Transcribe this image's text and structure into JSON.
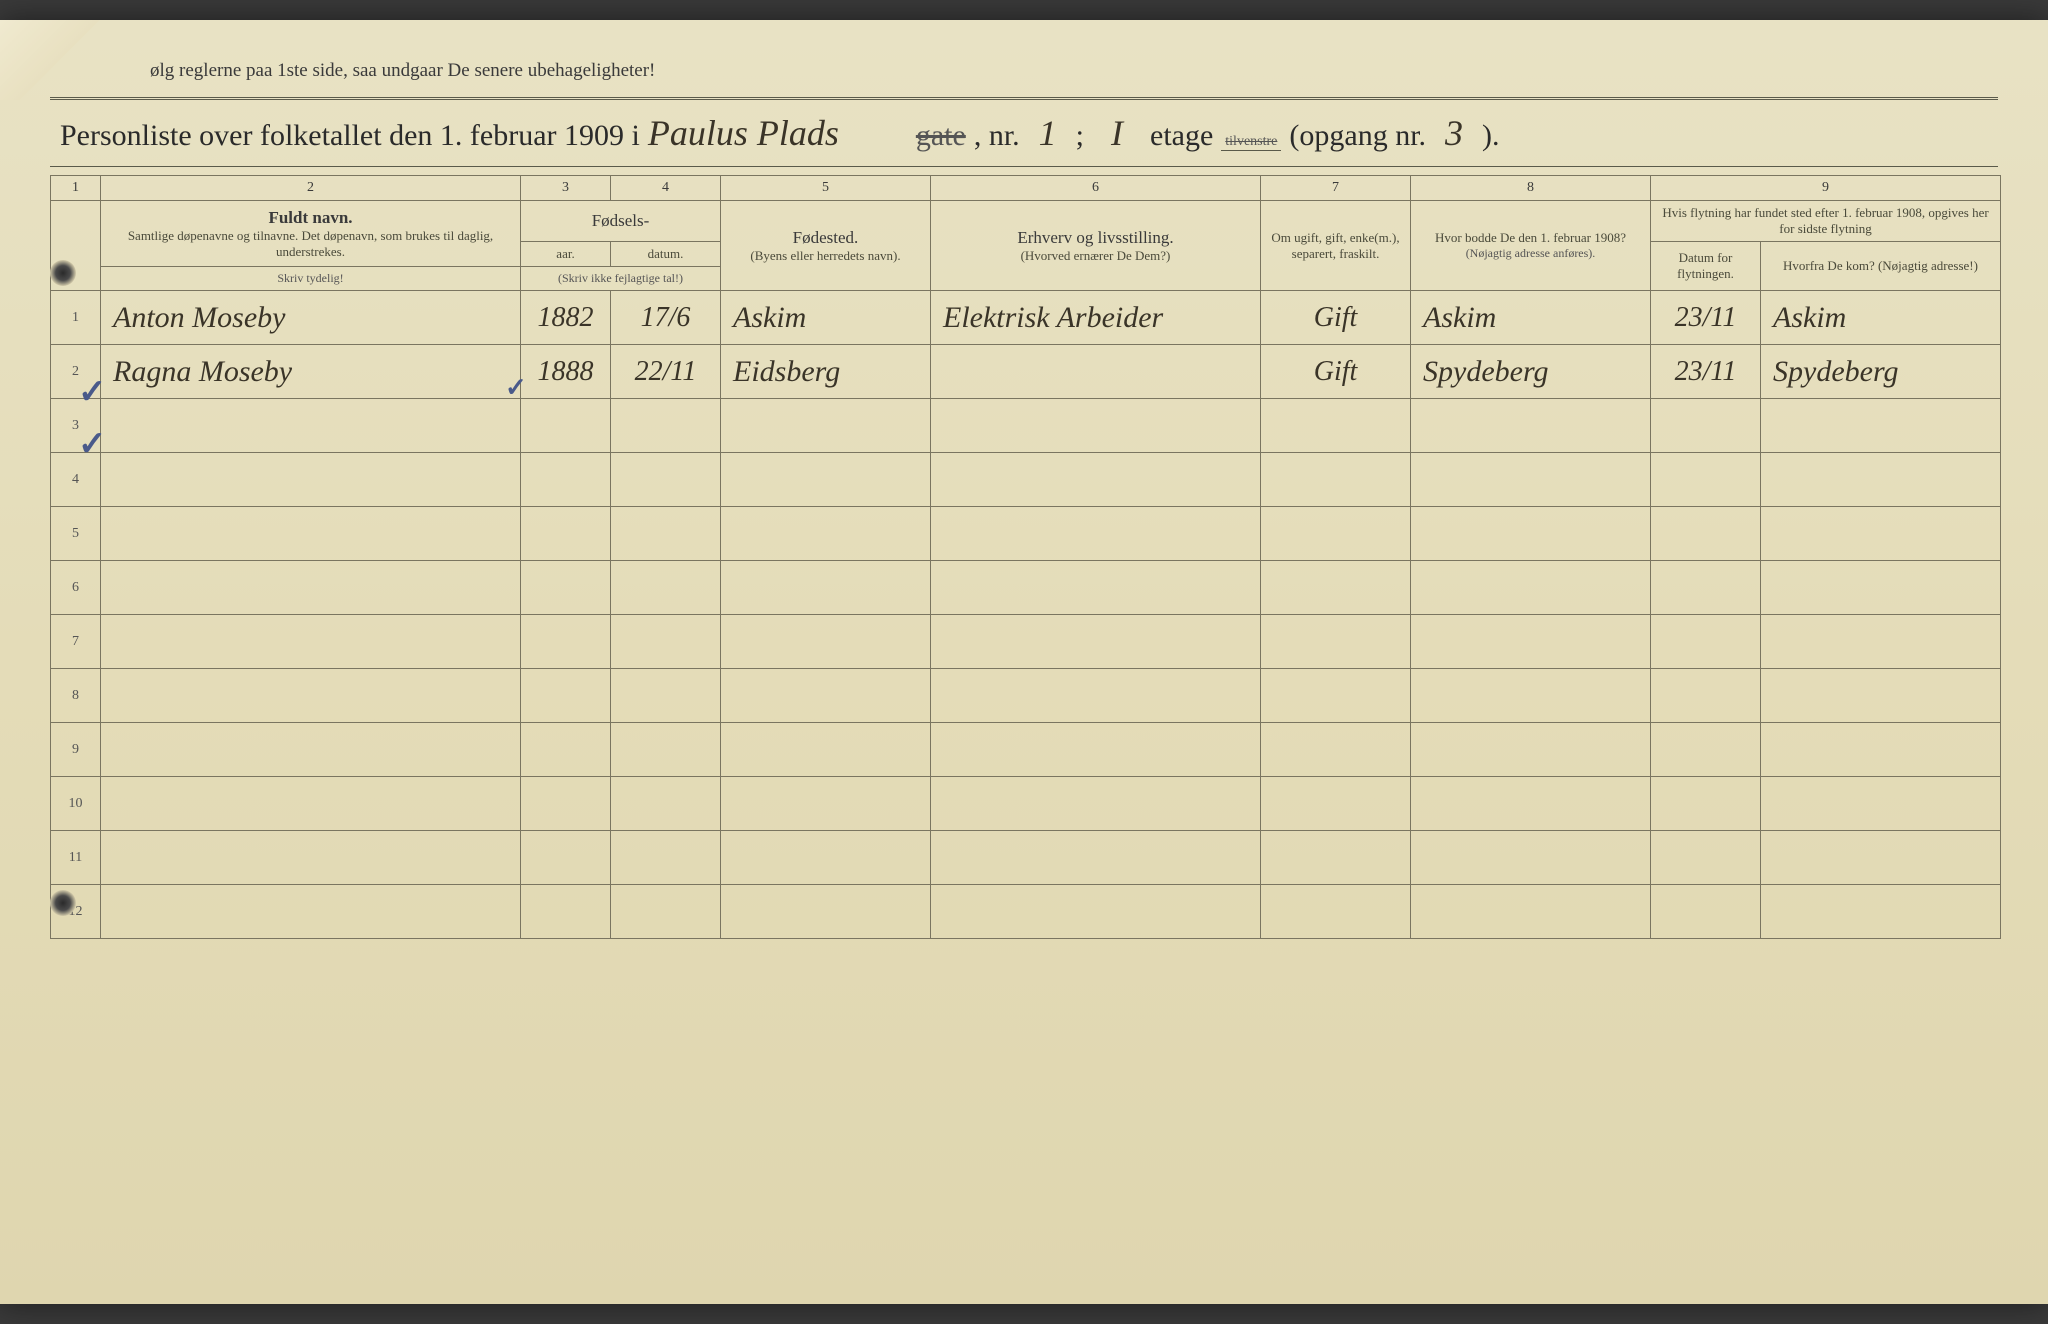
{
  "top_note": "ølg reglerne paa 1ste side, saa undgaar De senere ubehageligheter!",
  "title": {
    "prefix": "Personliste over folketallet den 1. februar 1909 i",
    "street": "Paulus Plads",
    "strike_gate": "gate",
    "nr_label": ", nr.",
    "nr_value": "1",
    "semicolon": ";",
    "etage_value": "I",
    "etage_label": "etage",
    "strike_side": "tilvenstre",
    "opgang_label": "(opgang nr.",
    "opgang_value": "3",
    "close": ")."
  },
  "colnums": [
    "1",
    "2",
    "3",
    "4",
    "5",
    "6",
    "7",
    "8",
    "9"
  ],
  "headers": {
    "name_main": "Fuldt navn.",
    "name_sub": "Samtlige døpenavne og tilnavne. Det døpenavn, som brukes til daglig, understrekes.",
    "birth_main": "Fødsels-",
    "year": "aar.",
    "date": "datum.",
    "year_note": "(Skriv ikke fejlagtige tal!)",
    "birthplace_main": "Fødested.",
    "birthplace_sub": "(Byens eller herredets navn).",
    "occupation_main": "Erhverv og livsstilling.",
    "occupation_sub": "(Hvorved ernærer De Dem?)",
    "marital_main": "Om ugift, gift, enke(m.), separert, fraskilt.",
    "residence_main": "Hvor bodde De den 1. februar 1908?",
    "residence_sub": "(Nøjagtig adresse anføres).",
    "move_intro": "Hvis flytning har fundet sted efter 1. februar 1908, opgives her for sidste flytning",
    "move_date": "Datum for flytningen.",
    "move_from": "Hvorfra De kom? (Nøjagtig adresse!)",
    "write_clear": "Skriv tydelig!"
  },
  "rows": [
    {
      "n": "1",
      "name": "Anton Moseby",
      "year": "1882",
      "date": "17/6",
      "birthplace": "Askim",
      "occupation": "Elektrisk Arbeider",
      "marital": "Gift",
      "residence": "Askim",
      "move_date": "23/11",
      "move_from": "Askim",
      "check": true
    },
    {
      "n": "2",
      "name": "Ragna Moseby",
      "year": "1888",
      "date": "22/11",
      "birthplace": "Eidsberg",
      "occupation": "",
      "marital": "Gift",
      "residence": "Spydeberg",
      "move_date": "23/11",
      "move_from": "Spydeberg",
      "check": true
    },
    {
      "n": "3"
    },
    {
      "n": "4"
    },
    {
      "n": "5"
    },
    {
      "n": "6"
    },
    {
      "n": "7"
    },
    {
      "n": "8"
    },
    {
      "n": "9"
    },
    {
      "n": "10"
    },
    {
      "n": "11"
    },
    {
      "n": "12"
    }
  ],
  "colors": {
    "paper": "#e4dcb8",
    "ink": "#3a3428",
    "border": "#7a7560",
    "bluecheck": "#4a5a8a"
  }
}
